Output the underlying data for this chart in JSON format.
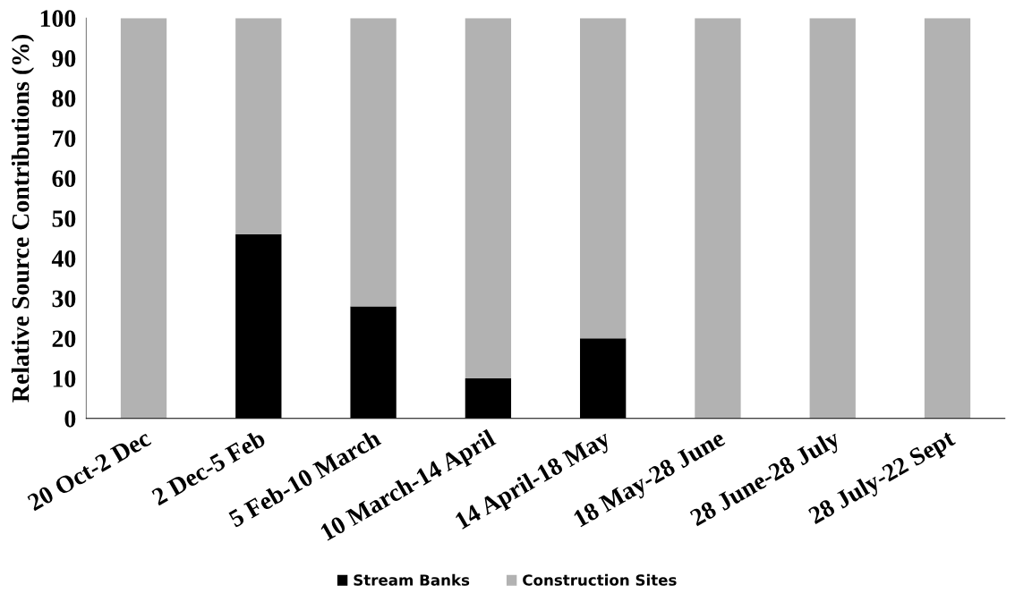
{
  "chart_data": {
    "type": "bar",
    "stacked": true,
    "ylabel": "Relative Source Contributions (%)",
    "categories": [
      "20 Oct-2 Dec",
      "2 Dec-5 Feb",
      "5 Feb-10 March",
      "10 March-14 April",
      "14 April-18 May",
      "18 May-28 June",
      "28 June-28 July",
      "28 July-22 Sept"
    ],
    "series": [
      {
        "name": "Stream Banks",
        "color": "#000000",
        "values": [
          0,
          46,
          28,
          10,
          20,
          0,
          0,
          0
        ]
      },
      {
        "name": "Construction Sites",
        "color": "#b2b2b2",
        "values": [
          100,
          54,
          72,
          90,
          80,
          100,
          100,
          100
        ]
      }
    ],
    "ylim": [
      0,
      100
    ],
    "yticks": [
      0,
      10,
      20,
      30,
      40,
      50,
      60,
      70,
      80,
      90,
      100
    ],
    "grid": false,
    "legend": "bottom"
  }
}
